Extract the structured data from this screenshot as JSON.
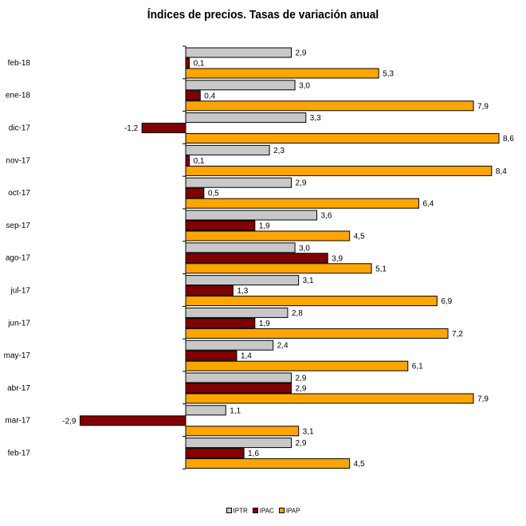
{
  "chart_data": {
    "type": "bar",
    "orientation": "horizontal",
    "title": "Índices de precios. Tasas de variación anual",
    "categories": [
      "feb-18",
      "ene-18",
      "dic-17",
      "nov-17",
      "oct-17",
      "sep-17",
      "ago-17",
      "jul-17",
      "jun-17",
      "may-17",
      "abr-17",
      "mar-17",
      "feb-17"
    ],
    "series": [
      {
        "name": "IPTR",
        "color": "#c8c8c8",
        "values": [
          2.9,
          3.0,
          3.3,
          2.3,
          2.9,
          3.6,
          3.0,
          3.1,
          2.8,
          2.4,
          2.9,
          1.1,
          2.9
        ],
        "labels": [
          "2,9",
          "3,0",
          "3,3",
          "2,3",
          "2,9",
          "3,6",
          "3,0",
          "3,1",
          "2,8",
          "2,4",
          "2,9",
          "1,1",
          "2,9"
        ]
      },
      {
        "name": "IPAC",
        "color": "#800000",
        "values": [
          0.1,
          0.4,
          -1.2,
          0.1,
          0.5,
          1.9,
          3.9,
          1.3,
          1.9,
          1.4,
          2.9,
          -2.9,
          1.6
        ],
        "labels": [
          "0,1",
          "0,4",
          "-1,2",
          "0,1",
          "0,5",
          "1,9",
          "3,9",
          "1,3",
          "1,9",
          "1,4",
          "2,9",
          "-2,9",
          "1,6"
        ]
      },
      {
        "name": "IPAP",
        "color": "#ffa500",
        "values": [
          5.3,
          7.9,
          8.6,
          8.4,
          6.4,
          4.5,
          5.1,
          6.9,
          7.2,
          6.1,
          7.9,
          3.1,
          4.5
        ],
        "labels": [
          "5,3",
          "7,9",
          "8,6",
          "8,4",
          "6,4",
          "4,5",
          "5,1",
          "6,9",
          "7,2",
          "6,1",
          "7,9",
          "3,1",
          "4,5"
        ]
      }
    ],
    "xlim": [
      -2.9,
      8.6
    ],
    "grid": false,
    "legend_position": "bottom"
  }
}
